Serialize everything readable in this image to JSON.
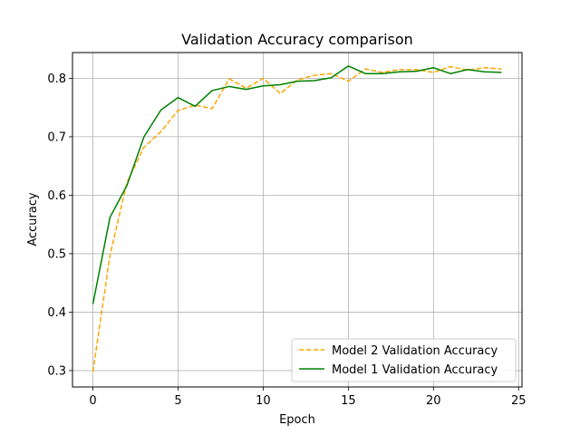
{
  "chart_data": {
    "type": "line",
    "title": "Validation Accuracy comparison",
    "xlabel": "Epoch",
    "ylabel": "Accuracy",
    "xlim": [
      -1.2,
      25.2
    ],
    "ylim": [
      0.272,
      0.844
    ],
    "xticks": [
      0,
      5,
      10,
      15,
      20,
      25
    ],
    "yticks": [
      0.3,
      0.4,
      0.5,
      0.6,
      0.7,
      0.8
    ],
    "grid": true,
    "legend_position": "lower-right",
    "x": [
      0,
      1,
      2,
      3,
      4,
      5,
      6,
      7,
      8,
      9,
      10,
      11,
      12,
      13,
      14,
      15,
      16,
      17,
      18,
      19,
      20,
      21,
      22,
      23,
      24
    ],
    "series": [
      {
        "name": "Model 2 Validation Accuracy",
        "color": "#ffa500",
        "dash": "dashed",
        "values": [
          0.298,
          0.497,
          0.622,
          0.682,
          0.709,
          0.745,
          0.754,
          0.748,
          0.799,
          0.783,
          0.8,
          0.774,
          0.797,
          0.805,
          0.808,
          0.795,
          0.816,
          0.81,
          0.815,
          0.815,
          0.81,
          0.82,
          0.814,
          0.818,
          0.816
        ]
      },
      {
        "name": "Model 1 Validation Accuracy",
        "color": "#008000",
        "dash": "solid",
        "values": [
          0.414,
          0.562,
          0.617,
          0.7,
          0.746,
          0.767,
          0.752,
          0.779,
          0.786,
          0.781,
          0.787,
          0.789,
          0.795,
          0.796,
          0.801,
          0.821,
          0.808,
          0.808,
          0.811,
          0.812,
          0.818,
          0.808,
          0.815,
          0.811,
          0.81
        ]
      }
    ]
  }
}
